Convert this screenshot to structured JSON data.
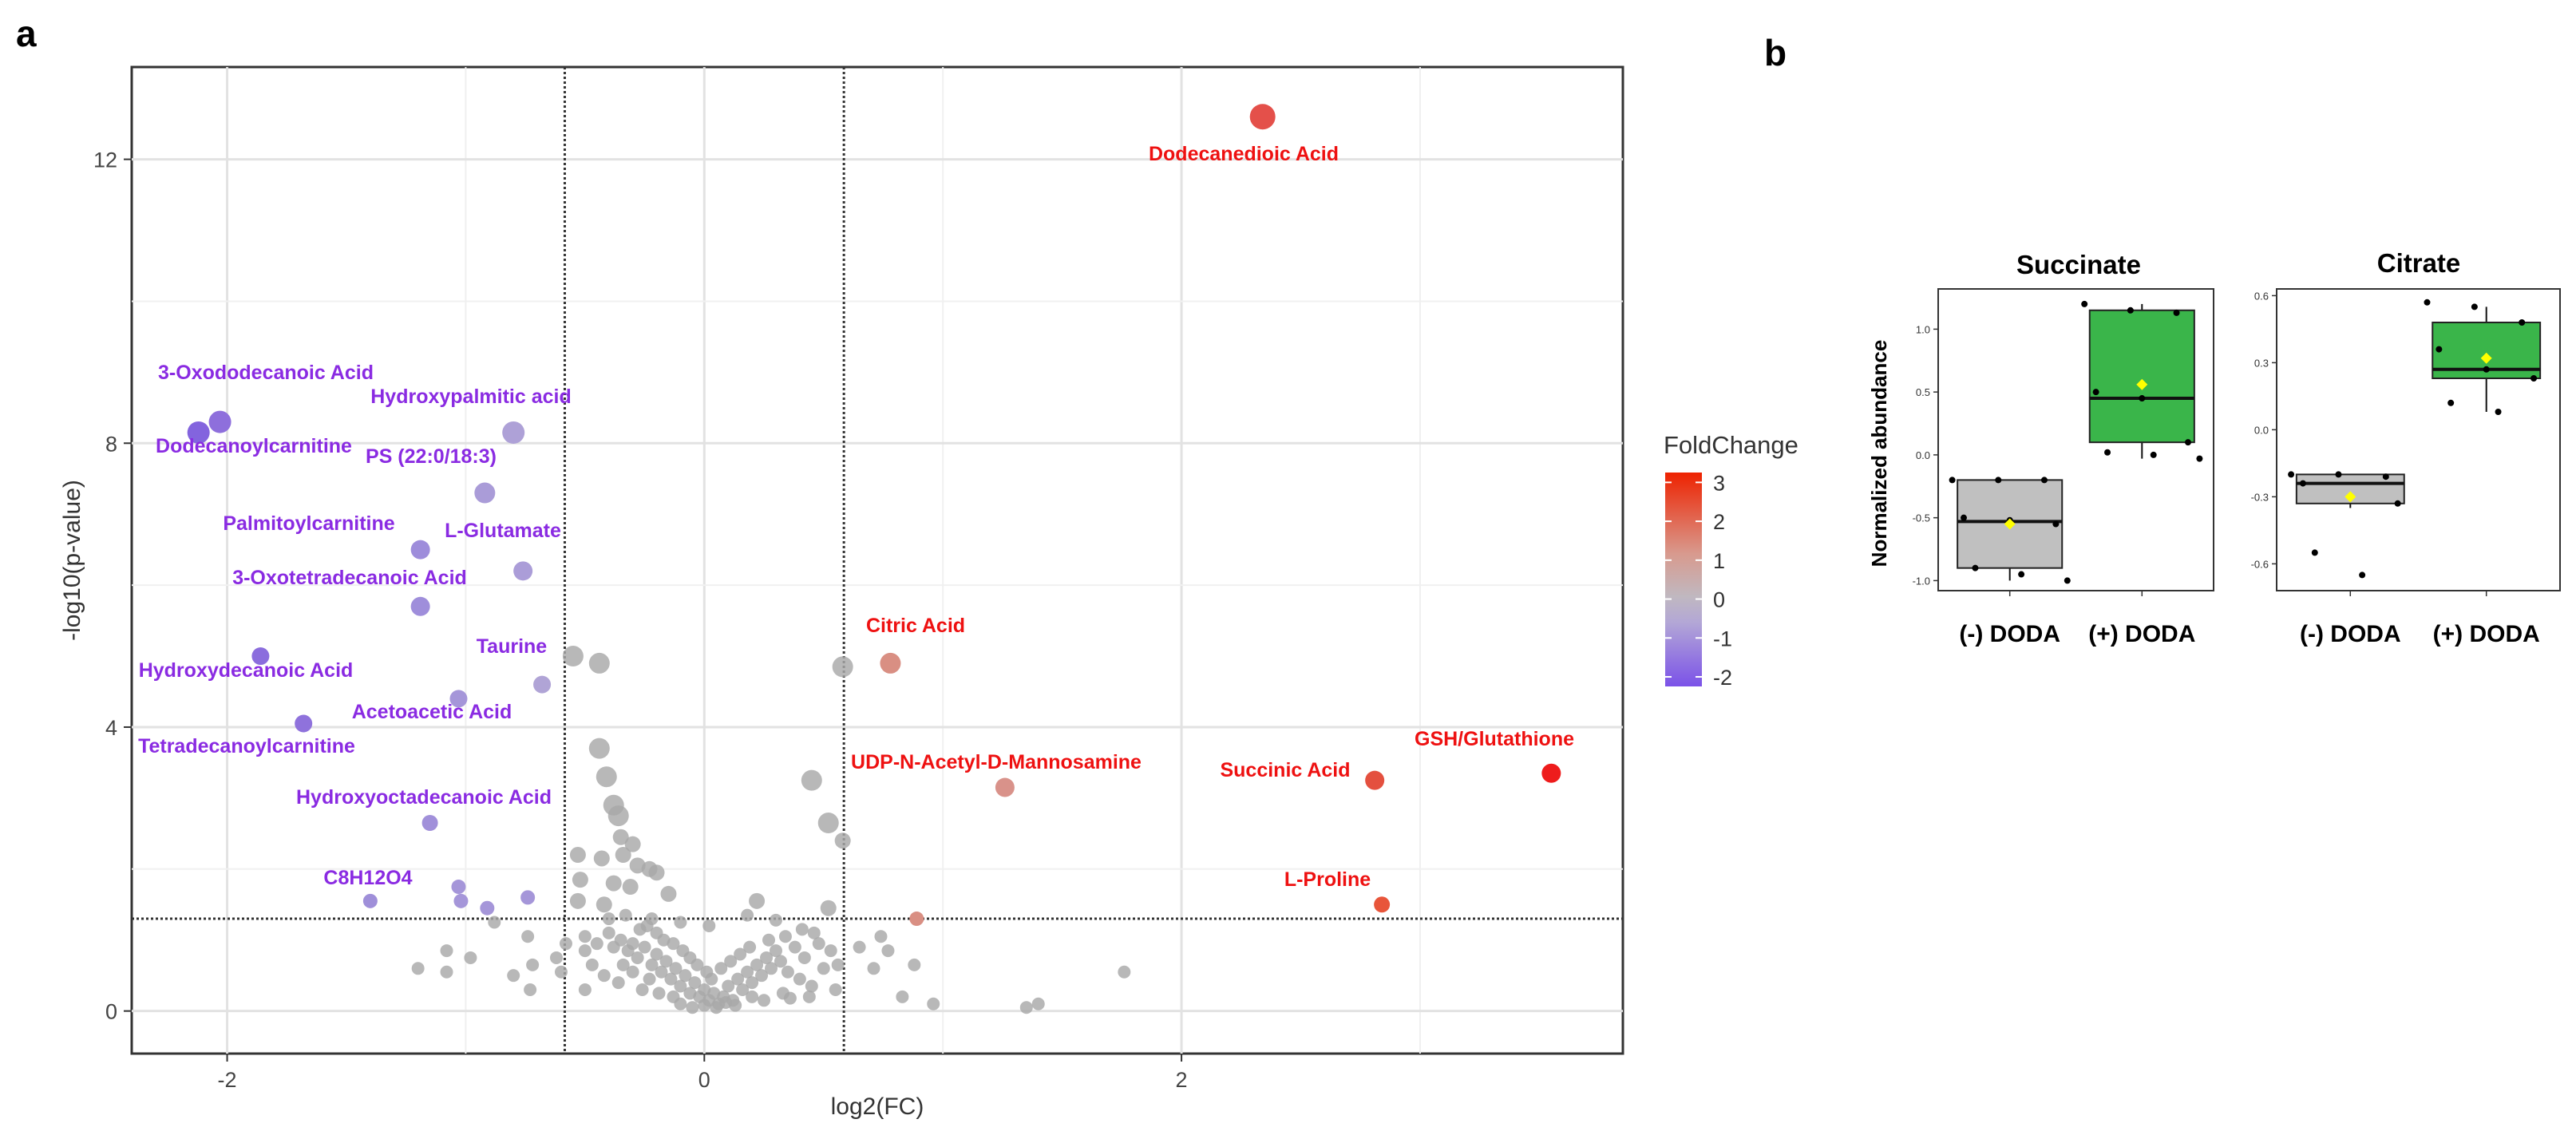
{
  "panel_labels": {
    "a": "a",
    "b": "b"
  },
  "chart_data": [
    {
      "type": "scatter",
      "title": "",
      "xlabel": "log2(FC)",
      "ylabel": "-log10(p-value)",
      "xlim": [
        -2.4,
        3.85
      ],
      "ylim": [
        -0.6,
        13.3
      ],
      "xticks": [
        -2,
        0,
        2
      ],
      "yticks": [
        0,
        4,
        8,
        12
      ],
      "xtick_labels": [
        "-2",
        "0",
        "2"
      ],
      "ytick_labels": [
        "0",
        "4",
        "8",
        "12"
      ],
      "grid": true,
      "fc_thresholds": [
        -0.585,
        0.585
      ],
      "p_threshold": 1.3,
      "legend": {
        "title": "FoldChange",
        "position": "right",
        "min": -2,
        "max": 3.5,
        "ticks": [
          3,
          2,
          1,
          0,
          -1,
          -2
        ],
        "tick_labels": [
          "3",
          "2",
          "1",
          "0",
          "-1",
          "-2"
        ],
        "colors": [
          "#7b52e8",
          "#b3a7d6",
          "#c0b8c0",
          "#d89a8e",
          "#ee2200"
        ]
      },
      "labeled_points": [
        {
          "label": "Dodecanedioic Acid",
          "x": 2.34,
          "y": 12.6,
          "fc": 3.1,
          "color": "#e4504a",
          "size": 16
        },
        {
          "label": "Citric Acid",
          "x": 0.78,
          "y": 4.9,
          "fc": 1.1,
          "color": "#d98f83",
          "size": 13
        },
        {
          "label": "UDP-N-Acetyl-D-Mannosamine",
          "x": 1.26,
          "y": 3.15,
          "fc": 0.9,
          "color": "#d9928a",
          "size": 12
        },
        {
          "label": "Succinic Acid",
          "x": 2.81,
          "y": 3.25,
          "fc": 2.4,
          "color": "#e4503f",
          "size": 12
        },
        {
          "label": "GSH/Glutathione",
          "x": 3.55,
          "y": 3.35,
          "fc": 3.4,
          "color": "#ee1c1c",
          "size": 12
        },
        {
          "label": "L-Proline",
          "x": 2.84,
          "y": 1.5,
          "fc": 2.5,
          "color": "#e8553a",
          "size": 10
        },
        {
          "label": "3-Oxododecanoic Acid",
          "x": -2.03,
          "y": 8.3,
          "fc": -2.0,
          "color": "#8e6fdc",
          "size": 14
        },
        {
          "label": "Dodecanoylcarnitine",
          "x": -2.12,
          "y": 8.15,
          "fc": -2.1,
          "color": "#8364de",
          "size": 14
        },
        {
          "label": "Hydroxypalmitic acid",
          "x": -0.8,
          "y": 8.15,
          "fc": -0.8,
          "color": "#aea1d7",
          "size": 14
        },
        {
          "label": "PS (22:0/18:3)",
          "x": -0.92,
          "y": 7.3,
          "fc": -0.9,
          "color": "#aa9cd8",
          "size": 13
        },
        {
          "label": "Palmitoylcarnitine",
          "x": -1.19,
          "y": 6.5,
          "fc": -1.2,
          "color": "#9e8ddb",
          "size": 12
        },
        {
          "label": "L-Glutamate",
          "x": -0.76,
          "y": 6.2,
          "fc": -0.8,
          "color": "#ab9dd8",
          "size": 12
        },
        {
          "label": "3-Oxotetradecanoic Acid",
          "x": -1.19,
          "y": 5.7,
          "fc": -1.2,
          "color": "#9f8edb",
          "size": 12
        },
        {
          "label": "Taurine",
          "x": -0.68,
          "y": 4.6,
          "fc": -0.7,
          "color": "#b0a4d6",
          "size": 11
        },
        {
          "label": "Hydroxydecanoic Acid",
          "x": -1.86,
          "y": 5.0,
          "fc": -1.9,
          "color": "#8b6ddd",
          "size": 11
        },
        {
          "label": "Acetoacetic Acid",
          "x": -1.03,
          "y": 4.4,
          "fc": -1.0,
          "color": "#a596d9",
          "size": 11
        },
        {
          "label": "Tetradecanoylcarnitine",
          "x": -1.68,
          "y": 4.05,
          "fc": -1.7,
          "color": "#8f72dc",
          "size": 11
        },
        {
          "label": "Hydroxyoctadecanoic Acid",
          "x": -1.15,
          "y": 2.65,
          "fc": -1.2,
          "color": "#a190da",
          "size": 10
        },
        {
          "label": "C8H12O4",
          "x": -1.4,
          "y": 1.55,
          "fc": -1.4,
          "color": "#9f8fd9",
          "size": 9
        }
      ],
      "minor_sig_points": [
        {
          "x": -1.03,
          "y": 1.75,
          "fc": -1.0
        },
        {
          "x": -1.02,
          "y": 1.55,
          "fc": -1.0
        },
        {
          "x": -0.91,
          "y": 1.45,
          "fc": -0.9
        },
        {
          "x": -0.74,
          "y": 1.6,
          "fc": -0.7
        },
        {
          "x": 0.89,
          "y": 1.3,
          "fc": 0.9
        }
      ],
      "ns_points": [
        [
          -0.55,
          5.0
        ],
        [
          -0.44,
          4.9
        ],
        [
          0.58,
          4.85
        ],
        [
          -0.44,
          3.7
        ],
        [
          -0.41,
          3.3
        ],
        [
          0.45,
          3.25
        ],
        [
          -0.38,
          2.9
        ],
        [
          -0.36,
          2.75
        ],
        [
          -0.35,
          2.45
        ],
        [
          -0.3,
          2.35
        ],
        [
          -0.34,
          2.2
        ],
        [
          0.52,
          2.65
        ],
        [
          0.58,
          2.4
        ],
        [
          -0.53,
          2.2
        ],
        [
          -0.43,
          2.15
        ],
        [
          -0.28,
          2.05
        ],
        [
          -0.23,
          2.0
        ],
        [
          -0.2,
          1.95
        ],
        [
          -0.52,
          1.85
        ],
        [
          -0.38,
          1.8
        ],
        [
          -0.31,
          1.75
        ],
        [
          -0.15,
          1.65
        ],
        [
          0.22,
          1.55
        ],
        [
          -0.53,
          1.55
        ],
        [
          -0.42,
          1.5
        ],
        [
          -0.4,
          1.3
        ],
        [
          -0.33,
          1.35
        ],
        [
          -0.22,
          1.3
        ],
        [
          -0.1,
          1.25
        ],
        [
          0.02,
          1.2
        ],
        [
          0.18,
          1.35
        ],
        [
          0.3,
          1.28
        ],
        [
          0.52,
          1.45
        ],
        [
          0.74,
          1.05
        ],
        [
          0.77,
          0.85
        ],
        [
          0.88,
          0.65
        ],
        [
          -0.88,
          1.25
        ],
        [
          -0.74,
          1.05
        ],
        [
          -0.58,
          0.95
        ],
        [
          -0.5,
          0.85
        ],
        [
          -0.72,
          0.65
        ],
        [
          -0.62,
          0.75
        ],
        [
          -1.08,
          0.85
        ],
        [
          -0.98,
          0.75
        ],
        [
          -0.8,
          0.5
        ],
        [
          -0.6,
          0.55
        ],
        [
          -1.08,
          0.55
        ],
        [
          -0.73,
          0.3
        ],
        [
          -1.2,
          0.6
        ],
        [
          -0.5,
          0.3
        ],
        [
          -0.5,
          1.05
        ],
        [
          -0.45,
          0.95
        ],
        [
          -0.4,
          1.1
        ],
        [
          -0.38,
          0.9
        ],
        [
          -0.35,
          1.0
        ],
        [
          -0.32,
          0.85
        ],
        [
          -0.3,
          0.95
        ],
        [
          -0.28,
          0.75
        ],
        [
          -0.25,
          0.9
        ],
        [
          -0.22,
          0.65
        ],
        [
          -0.2,
          0.8
        ],
        [
          -0.18,
          0.55
        ],
        [
          -0.16,
          0.7
        ],
        [
          -0.14,
          0.45
        ],
        [
          -0.12,
          0.6
        ],
        [
          -0.1,
          0.35
        ],
        [
          -0.08,
          0.5
        ],
        [
          -0.06,
          0.25
        ],
        [
          -0.04,
          0.4
        ],
        [
          -0.02,
          0.2
        ],
        [
          0.0,
          0.3
        ],
        [
          0.02,
          0.15
        ],
        [
          0.04,
          0.25
        ],
        [
          0.06,
          0.1
        ],
        [
          0.08,
          0.2
        ],
        [
          0.1,
          0.35
        ],
        [
          0.12,
          0.15
        ],
        [
          0.14,
          0.45
        ],
        [
          0.16,
          0.3
        ],
        [
          0.18,
          0.55
        ],
        [
          0.2,
          0.4
        ],
        [
          0.22,
          0.65
        ],
        [
          0.24,
          0.5
        ],
        [
          0.26,
          0.75
        ],
        [
          0.28,
          0.6
        ],
        [
          0.3,
          0.85
        ],
        [
          0.32,
          0.7
        ],
        [
          0.35,
          0.55
        ],
        [
          0.38,
          0.9
        ],
        [
          0.4,
          0.45
        ],
        [
          0.42,
          0.75
        ],
        [
          0.45,
          0.35
        ],
        [
          0.48,
          0.95
        ],
        [
          0.5,
          0.6
        ],
        [
          0.55,
          0.3
        ],
        [
          -0.42,
          0.5
        ],
        [
          -0.36,
          0.4
        ],
        [
          -0.3,
          0.55
        ],
        [
          -0.26,
          0.3
        ],
        [
          -0.23,
          0.45
        ],
        [
          -0.19,
          0.25
        ],
        [
          -0.13,
          0.2
        ],
        [
          -0.1,
          0.1
        ],
        [
          -0.05,
          0.05
        ],
        [
          0.0,
          0.08
        ],
        [
          0.05,
          0.05
        ],
        [
          0.09,
          0.12
        ],
        [
          0.13,
          0.08
        ],
        [
          0.2,
          0.2
        ],
        [
          0.25,
          0.15
        ],
        [
          0.33,
          0.25
        ],
        [
          0.36,
          0.18
        ],
        [
          0.44,
          0.2
        ],
        [
          -0.47,
          0.65
        ],
        [
          -0.34,
          0.65
        ],
        [
          -0.27,
          1.15
        ],
        [
          -0.24,
          1.2
        ],
        [
          -0.2,
          1.1
        ],
        [
          -0.17,
          1.0
        ],
        [
          -0.13,
          0.95
        ],
        [
          -0.09,
          0.85
        ],
        [
          -0.06,
          0.75
        ],
        [
          -0.03,
          0.65
        ],
        [
          0.01,
          0.55
        ],
        [
          0.03,
          0.45
        ],
        [
          0.07,
          0.6
        ],
        [
          0.11,
          0.7
        ],
        [
          0.15,
          0.8
        ],
        [
          0.19,
          0.9
        ],
        [
          0.27,
          1.0
        ],
        [
          0.34,
          1.05
        ],
        [
          0.41,
          1.15
        ],
        [
          0.46,
          1.1
        ],
        [
          0.53,
          0.85
        ],
        [
          0.56,
          0.65
        ],
        [
          0.65,
          0.9
        ],
        [
          0.71,
          0.6
        ],
        [
          0.83,
          0.2
        ],
        [
          0.96,
          0.1
        ],
        [
          1.35,
          0.05
        ],
        [
          1.4,
          0.1
        ],
        [
          1.76,
          0.55
        ]
      ]
    },
    {
      "type": "box",
      "title": "Succinate",
      "ylabel": "Normalized abundance",
      "ylim": [
        -1.08,
        1.32
      ],
      "yticks": [
        -1.0,
        -0.5,
        0.0,
        0.5,
        1.0
      ],
      "ytick_labels": [
        "-1.0",
        "-0.5",
        "0.0",
        "0.5",
        "1.0"
      ],
      "categories": [
        "(-) DODA",
        "(+) DODA"
      ],
      "groups": [
        {
          "name": "(-) DODA",
          "color": "#c0c0c0",
          "whisker_low": -1.0,
          "q1": -0.9,
          "median": -0.53,
          "q3": -0.2,
          "whisker_high": -0.2,
          "mean": -0.55,
          "points": [
            -0.2,
            -0.2,
            -0.2,
            -0.5,
            -0.52,
            -0.55,
            -0.9,
            -0.95,
            -1.0
          ]
        },
        {
          "name": "(+) DODA",
          "color": "#3ab54a",
          "whisker_low": -0.03,
          "q1": 0.1,
          "median": 0.45,
          "q3": 1.15,
          "whisker_high": 1.2,
          "mean": 0.56,
          "points": [
            1.2,
            1.15,
            1.13,
            0.5,
            0.45,
            0.1,
            0.02,
            0.0,
            -0.03
          ]
        }
      ]
    },
    {
      "type": "box",
      "title": "Citrate",
      "ylabel": "",
      "ylim": [
        -0.72,
        0.63
      ],
      "yticks": [
        -0.6,
        -0.3,
        0.0,
        0.3,
        0.6
      ],
      "ytick_labels": [
        "-0.6",
        "-0.3",
        "0.0",
        "0.3",
        "0.6"
      ],
      "categories": [
        "(-) DODA",
        "(+) DODA"
      ],
      "groups": [
        {
          "name": "(-) DODA",
          "color": "#c0c0c0",
          "whisker_low": -0.35,
          "q1": -0.33,
          "median": -0.24,
          "q3": -0.2,
          "whisker_high": -0.2,
          "mean": -0.3,
          "points": [
            -0.2,
            -0.2,
            -0.21,
            -0.24,
            -0.3,
            -0.33,
            -0.55,
            -0.65
          ]
        },
        {
          "name": "(+) DODA",
          "color": "#3ab54a",
          "whisker_low": 0.08,
          "q1": 0.23,
          "median": 0.27,
          "q3": 0.48,
          "whisker_high": 0.55,
          "mean": 0.32,
          "points": [
            0.57,
            0.55,
            0.48,
            0.36,
            0.27,
            0.23,
            0.12,
            0.08
          ]
        }
      ]
    }
  ]
}
